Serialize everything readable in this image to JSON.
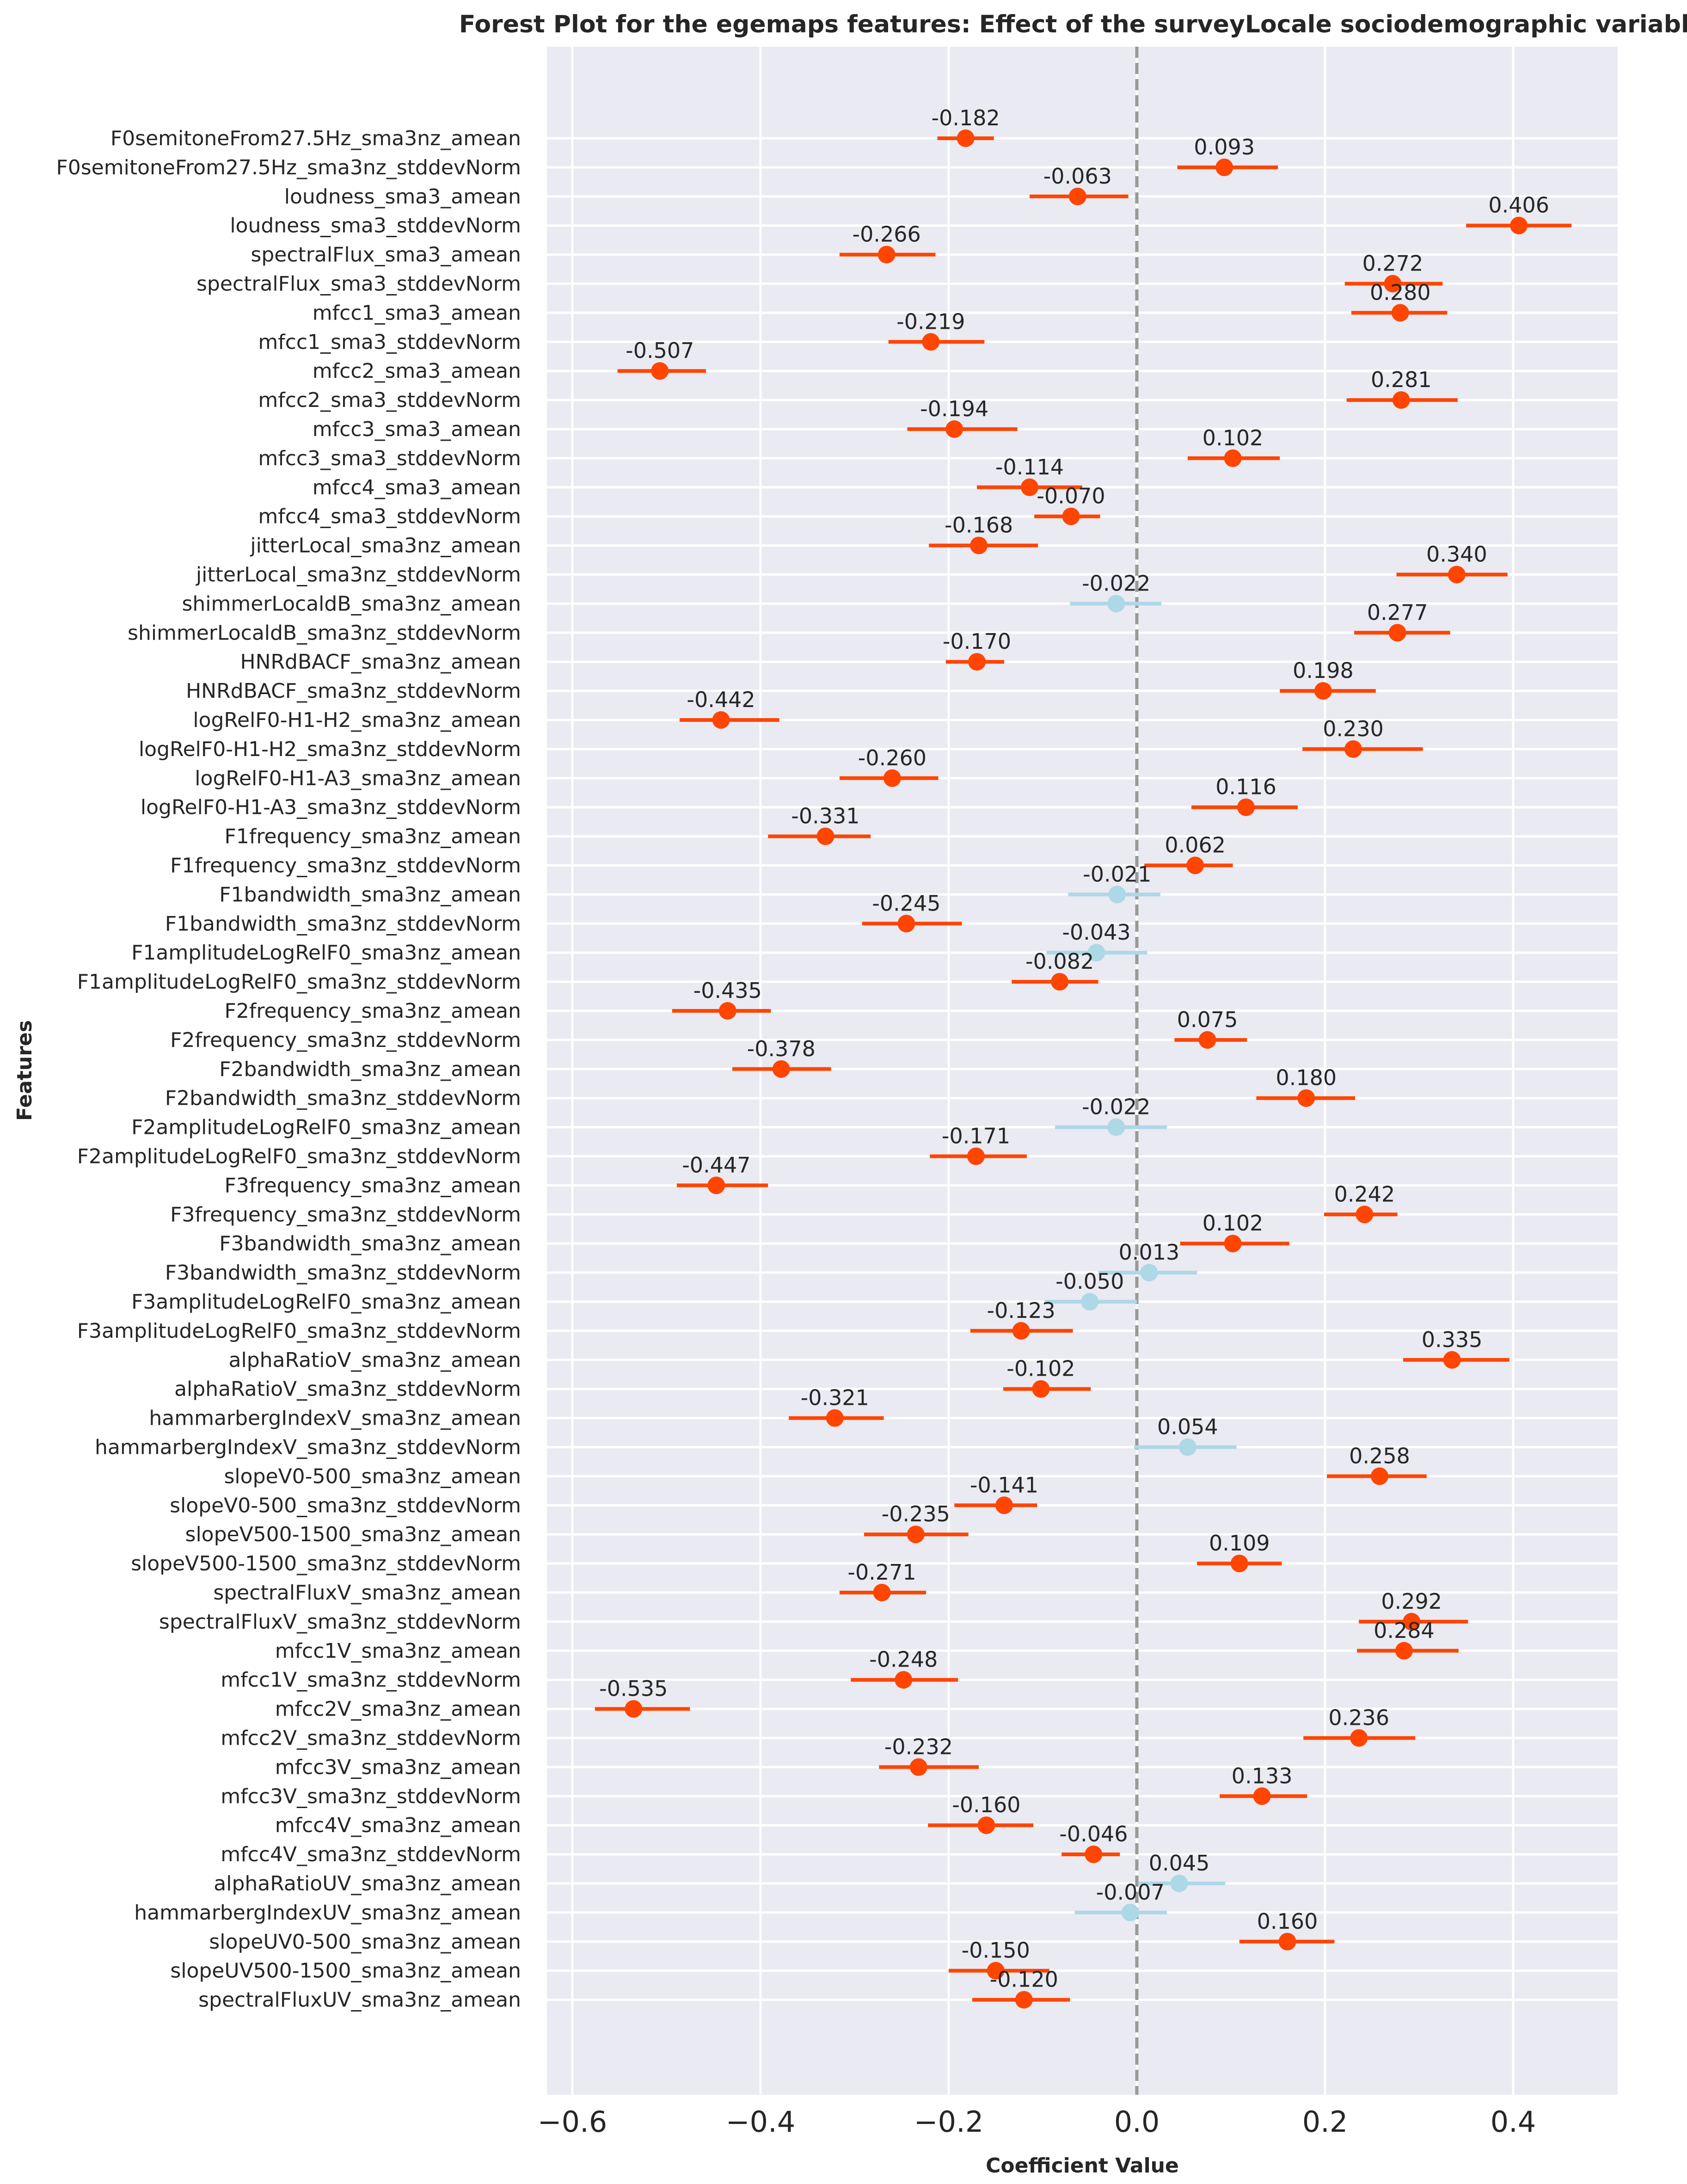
{
  "chart_data": {
    "type": "forest",
    "title": "Forest Plot for the egemaps features: Effect of the surveyLocale sociodemographic variable",
    "xlabel": "Coefficient Value",
    "ylabel": "Features",
    "xlim": [
      -0.63,
      0.51
    ],
    "xticks": [
      -0.6,
      -0.4,
      -0.2,
      0.0,
      0.2,
      0.4
    ],
    "xtick_labels": [
      "−0.6",
      "−0.4",
      "−0.2",
      "0.0",
      "0.2",
      "0.4"
    ],
    "reference_line": 0.0,
    "grid": true,
    "colors": {
      "significant": "#ff4500",
      "not_significant": "#add8e6",
      "background": "#eaeaf2",
      "grid": "#ffffff",
      "reference_line": "#999999",
      "text": "#262626"
    },
    "points": [
      {
        "feature": "F0semitoneFrom27.5Hz_sma3nz_amean",
        "label": "-0.182",
        "estimate": -0.182,
        "ci": [
          -0.212,
          -0.152
        ],
        "significant": true
      },
      {
        "feature": "F0semitoneFrom27.5Hz_sma3nz_stddevNorm",
        "label": "0.093",
        "estimate": 0.093,
        "ci": [
          0.043,
          0.15
        ],
        "significant": true
      },
      {
        "feature": "loudness_sma3_amean",
        "label": "-0.063",
        "estimate": -0.063,
        "ci": [
          -0.114,
          -0.009
        ],
        "significant": true
      },
      {
        "feature": "loudness_sma3_stddevNorm",
        "label": "0.406",
        "estimate": 0.406,
        "ci": [
          0.35,
          0.462
        ],
        "significant": true
      },
      {
        "feature": "spectralFlux_sma3_amean",
        "label": "-0.266",
        "estimate": -0.266,
        "ci": [
          -0.316,
          -0.214
        ],
        "significant": true
      },
      {
        "feature": "spectralFlux_sma3_stddevNorm",
        "label": "0.272",
        "estimate": 0.272,
        "ci": [
          0.221,
          0.325
        ],
        "significant": true
      },
      {
        "feature": "mfcc1_sma3_amean",
        "label": "0.280",
        "estimate": 0.28,
        "ci": [
          0.228,
          0.33
        ],
        "significant": true
      },
      {
        "feature": "mfcc1_sma3_stddevNorm",
        "label": "-0.219",
        "estimate": -0.219,
        "ci": [
          -0.264,
          -0.162
        ],
        "significant": true
      },
      {
        "feature": "mfcc2_sma3_amean",
        "label": "-0.507",
        "estimate": -0.507,
        "ci": [
          -0.552,
          -0.458
        ],
        "significant": true
      },
      {
        "feature": "mfcc2_sma3_stddevNorm",
        "label": "0.281",
        "estimate": 0.281,
        "ci": [
          0.223,
          0.341
        ],
        "significant": true
      },
      {
        "feature": "mfcc3_sma3_amean",
        "label": "-0.194",
        "estimate": -0.194,
        "ci": [
          -0.244,
          -0.127
        ],
        "significant": true
      },
      {
        "feature": "mfcc3_sma3_stddevNorm",
        "label": "0.102",
        "estimate": 0.102,
        "ci": [
          0.054,
          0.152
        ],
        "significant": true
      },
      {
        "feature": "mfcc4_sma3_amean",
        "label": "-0.114",
        "estimate": -0.114,
        "ci": [
          -0.17,
          -0.058
        ],
        "significant": true
      },
      {
        "feature": "mfcc4_sma3_stddevNorm",
        "label": "-0.070",
        "estimate": -0.07,
        "ci": [
          -0.109,
          -0.039
        ],
        "significant": true
      },
      {
        "feature": "jitterLocal_sma3nz_amean",
        "label": "-0.168",
        "estimate": -0.168,
        "ci": [
          -0.221,
          -0.105
        ],
        "significant": true
      },
      {
        "feature": "jitterLocal_sma3nz_stddevNorm",
        "label": "0.340",
        "estimate": 0.34,
        "ci": [
          0.276,
          0.394
        ],
        "significant": true
      },
      {
        "feature": "shimmerLocaldB_sma3nz_amean",
        "label": "-0.022",
        "estimate": -0.022,
        "ci": [
          -0.071,
          0.026
        ],
        "significant": false
      },
      {
        "feature": "shimmerLocaldB_sma3nz_stddevNorm",
        "label": "0.277",
        "estimate": 0.277,
        "ci": [
          0.231,
          0.333
        ],
        "significant": true
      },
      {
        "feature": "HNRdBACF_sma3nz_amean",
        "label": "-0.170",
        "estimate": -0.17,
        "ci": [
          -0.203,
          -0.141
        ],
        "significant": true
      },
      {
        "feature": "HNRdBACF_sma3nz_stddevNorm",
        "label": "0.198",
        "estimate": 0.198,
        "ci": [
          0.152,
          0.254
        ],
        "significant": true
      },
      {
        "feature": "logRelF0-H1-H2_sma3nz_amean",
        "label": "-0.442",
        "estimate": -0.442,
        "ci": [
          -0.486,
          -0.38
        ],
        "significant": true
      },
      {
        "feature": "logRelF0-H1-H2_sma3nz_stddevNorm",
        "label": "0.230",
        "estimate": 0.23,
        "ci": [
          0.176,
          0.304
        ],
        "significant": true
      },
      {
        "feature": "logRelF0-H1-A3_sma3nz_amean",
        "label": "-0.260",
        "estimate": -0.26,
        "ci": [
          -0.316,
          -0.211
        ],
        "significant": true
      },
      {
        "feature": "logRelF0-H1-A3_sma3nz_stddevNorm",
        "label": "0.116",
        "estimate": 0.116,
        "ci": [
          0.058,
          0.171
        ],
        "significant": true
      },
      {
        "feature": "F1frequency_sma3nz_amean",
        "label": "-0.331",
        "estimate": -0.331,
        "ci": [
          -0.392,
          -0.283
        ],
        "significant": true
      },
      {
        "feature": "F1frequency_sma3nz_stddevNorm",
        "label": "0.062",
        "estimate": 0.062,
        "ci": [
          0.008,
          0.102
        ],
        "significant": true
      },
      {
        "feature": "F1bandwidth_sma3nz_amean",
        "label": "-0.021",
        "estimate": -0.021,
        "ci": [
          -0.073,
          0.025
        ],
        "significant": false
      },
      {
        "feature": "F1bandwidth_sma3nz_stddevNorm",
        "label": "-0.245",
        "estimate": -0.245,
        "ci": [
          -0.292,
          -0.186
        ],
        "significant": true
      },
      {
        "feature": "F1amplitudeLogRelF0_sma3nz_amean",
        "label": "-0.043",
        "estimate": -0.043,
        "ci": [
          -0.096,
          0.011
        ],
        "significant": false
      },
      {
        "feature": "F1amplitudeLogRelF0_sma3nz_stddevNorm",
        "label": "-0.082",
        "estimate": -0.082,
        "ci": [
          -0.133,
          -0.041
        ],
        "significant": true
      },
      {
        "feature": "F2frequency_sma3nz_amean",
        "label": "-0.435",
        "estimate": -0.435,
        "ci": [
          -0.494,
          -0.389
        ],
        "significant": true
      },
      {
        "feature": "F2frequency_sma3nz_stddevNorm",
        "label": "0.075",
        "estimate": 0.075,
        "ci": [
          0.04,
          0.117
        ],
        "significant": true
      },
      {
        "feature": "F2bandwidth_sma3nz_amean",
        "label": "-0.378",
        "estimate": -0.378,
        "ci": [
          -0.43,
          -0.325
        ],
        "significant": true
      },
      {
        "feature": "F2bandwidth_sma3nz_stddevNorm",
        "label": "0.180",
        "estimate": 0.18,
        "ci": [
          0.127,
          0.232
        ],
        "significant": true
      },
      {
        "feature": "F2amplitudeLogRelF0_sma3nz_amean",
        "label": "-0.022",
        "estimate": -0.022,
        "ci": [
          -0.087,
          0.032
        ],
        "significant": false
      },
      {
        "feature": "F2amplitudeLogRelF0_sma3nz_stddevNorm",
        "label": "-0.171",
        "estimate": -0.171,
        "ci": [
          -0.22,
          -0.117
        ],
        "significant": true
      },
      {
        "feature": "F3frequency_sma3nz_amean",
        "label": "-0.447",
        "estimate": -0.447,
        "ci": [
          -0.489,
          -0.392
        ],
        "significant": true
      },
      {
        "feature": "F3frequency_sma3nz_stddevNorm",
        "label": "0.242",
        "estimate": 0.242,
        "ci": [
          0.199,
          0.277
        ],
        "significant": true
      },
      {
        "feature": "F3bandwidth_sma3nz_amean",
        "label": "0.102",
        "estimate": 0.102,
        "ci": [
          0.046,
          0.162
        ],
        "significant": true
      },
      {
        "feature": "F3bandwidth_sma3nz_stddevNorm",
        "label": "0.013",
        "estimate": 0.013,
        "ci": [
          -0.041,
          0.064
        ],
        "significant": false
      },
      {
        "feature": "F3amplitudeLogRelF0_sma3nz_amean",
        "label": "-0.050",
        "estimate": -0.05,
        "ci": [
          -0.098,
          0.0
        ],
        "significant": false
      },
      {
        "feature": "F3amplitudeLogRelF0_sma3nz_stddevNorm",
        "label": "-0.123",
        "estimate": -0.123,
        "ci": [
          -0.177,
          -0.068
        ],
        "significant": true
      },
      {
        "feature": "alphaRatioV_sma3nz_amean",
        "label": "0.335",
        "estimate": 0.335,
        "ci": [
          0.283,
          0.396
        ],
        "significant": true
      },
      {
        "feature": "alphaRatioV_sma3nz_stddevNorm",
        "label": "-0.102",
        "estimate": -0.102,
        "ci": [
          -0.142,
          -0.049
        ],
        "significant": true
      },
      {
        "feature": "hammarbergIndexV_sma3nz_amean",
        "label": "-0.321",
        "estimate": -0.321,
        "ci": [
          -0.37,
          -0.269
        ],
        "significant": true
      },
      {
        "feature": "hammarbergIndexV_sma3nz_stddevNorm",
        "label": "0.054",
        "estimate": 0.054,
        "ci": [
          -0.003,
          0.106
        ],
        "significant": false
      },
      {
        "feature": "slopeV0-500_sma3nz_amean",
        "label": "0.258",
        "estimate": 0.258,
        "ci": [
          0.202,
          0.308
        ],
        "significant": true
      },
      {
        "feature": "slopeV0-500_sma3nz_stddevNorm",
        "label": "-0.141",
        "estimate": -0.141,
        "ci": [
          -0.194,
          -0.106
        ],
        "significant": true
      },
      {
        "feature": "slopeV500-1500_sma3nz_amean",
        "label": "-0.235",
        "estimate": -0.235,
        "ci": [
          -0.29,
          -0.179
        ],
        "significant": true
      },
      {
        "feature": "slopeV500-1500_sma3nz_stddevNorm",
        "label": "0.109",
        "estimate": 0.109,
        "ci": [
          0.064,
          0.154
        ],
        "significant": true
      },
      {
        "feature": "spectralFluxV_sma3nz_amean",
        "label": "-0.271",
        "estimate": -0.271,
        "ci": [
          -0.316,
          -0.224
        ],
        "significant": true
      },
      {
        "feature": "spectralFluxV_sma3nz_stddevNorm",
        "label": "0.292",
        "estimate": 0.292,
        "ci": [
          0.236,
          0.352
        ],
        "significant": true
      },
      {
        "feature": "mfcc1V_sma3nz_amean",
        "label": "0.284",
        "estimate": 0.284,
        "ci": [
          0.234,
          0.342
        ],
        "significant": true
      },
      {
        "feature": "mfcc1V_sma3nz_stddevNorm",
        "label": "-0.248",
        "estimate": -0.248,
        "ci": [
          -0.304,
          -0.19
        ],
        "significant": true
      },
      {
        "feature": "mfcc2V_sma3nz_amean",
        "label": "-0.535",
        "estimate": -0.535,
        "ci": [
          -0.576,
          -0.475
        ],
        "significant": true
      },
      {
        "feature": "mfcc2V_sma3nz_stddevNorm",
        "label": "0.236",
        "estimate": 0.236,
        "ci": [
          0.177,
          0.296
        ],
        "significant": true
      },
      {
        "feature": "mfcc3V_sma3nz_amean",
        "label": "-0.232",
        "estimate": -0.232,
        "ci": [
          -0.274,
          -0.168
        ],
        "significant": true
      },
      {
        "feature": "mfcc3V_sma3nz_stddevNorm",
        "label": "0.133",
        "estimate": 0.133,
        "ci": [
          0.088,
          0.181
        ],
        "significant": true
      },
      {
        "feature": "mfcc4V_sma3nz_amean",
        "label": "-0.160",
        "estimate": -0.16,
        "ci": [
          -0.222,
          -0.11
        ],
        "significant": true
      },
      {
        "feature": "mfcc4V_sma3nz_stddevNorm",
        "label": "-0.046",
        "estimate": -0.046,
        "ci": [
          -0.08,
          -0.018
        ],
        "significant": true
      },
      {
        "feature": "alphaRatioUV_sma3nz_amean",
        "label": "0.045",
        "estimate": 0.045,
        "ci": [
          0.002,
          0.094
        ],
        "significant": false
      },
      {
        "feature": "hammarbergIndexUV_sma3nz_amean",
        "label": "-0.007",
        "estimate": -0.007,
        "ci": [
          -0.066,
          0.032
        ],
        "significant": false
      },
      {
        "feature": "slopeUV0-500_sma3nz_amean",
        "label": "0.160",
        "estimate": 0.16,
        "ci": [
          0.109,
          0.21
        ],
        "significant": true
      },
      {
        "feature": "slopeUV500-1500_sma3nz_amean",
        "label": "-0.150",
        "estimate": -0.15,
        "ci": [
          -0.2,
          -0.093
        ],
        "significant": true
      },
      {
        "feature": "spectralFluxUV_sma3nz_amean",
        "label": "-0.120",
        "estimate": -0.12,
        "ci": [
          -0.175,
          -0.071
        ],
        "significant": true
      }
    ]
  }
}
